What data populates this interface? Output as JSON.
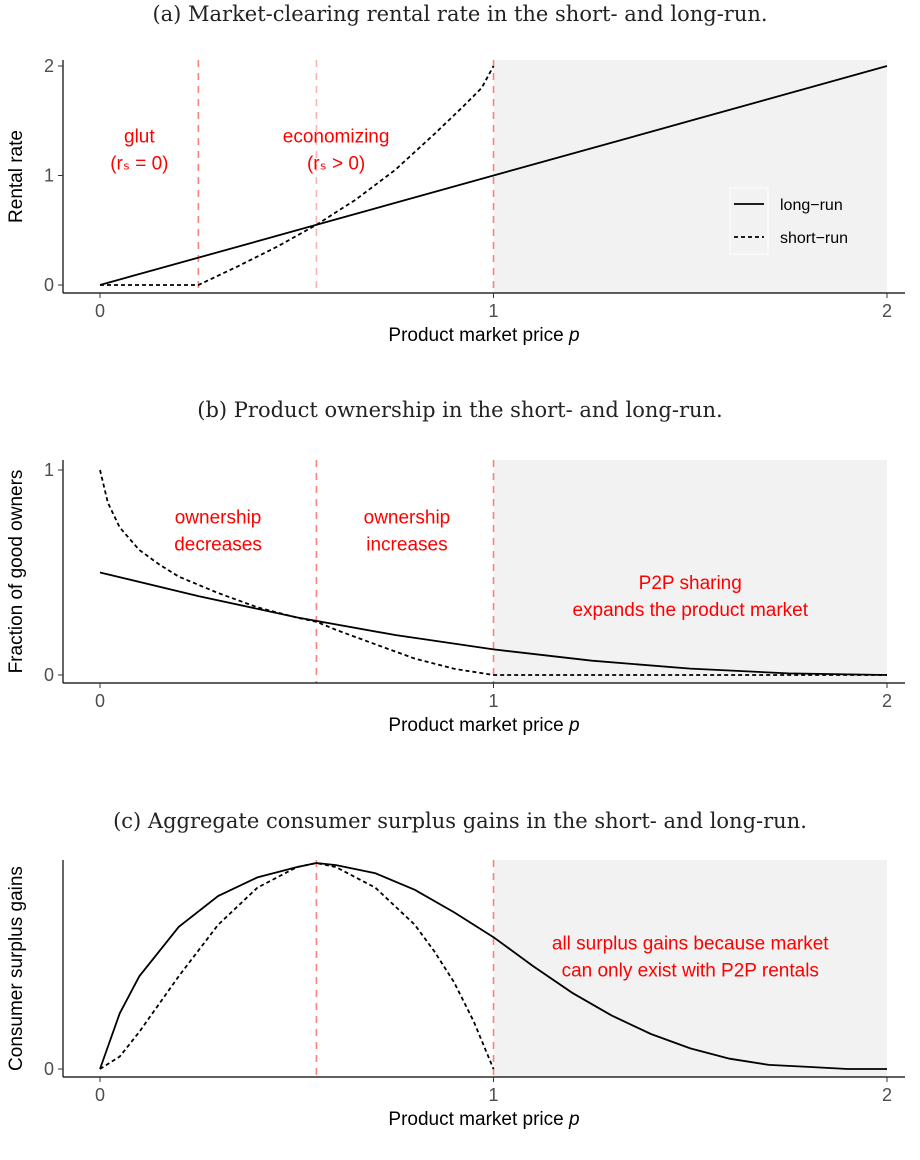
{
  "chart_data": [
    {
      "type": "line",
      "title": "(a) Market-clearing rental rate in the short- and long-run.",
      "xlabel": "Product market price p",
      "xlabel_prefix": "Product market price ",
      "xlabel_var": "p",
      "ylabel": "Rental rate",
      "xlim": [
        0,
        2
      ],
      "ylim": [
        0,
        2
      ],
      "xticks": [
        "0",
        "1",
        "2"
      ],
      "yticks": [
        "0",
        "1",
        "2"
      ],
      "shaded_region": [
        1,
        2
      ],
      "vlines": [
        0.25,
        0.55,
        1
      ],
      "legend": {
        "position": "right",
        "entries": [
          "long−run",
          "short−run"
        ]
      },
      "series": [
        {
          "name": "long−run",
          "style": "solid",
          "x": [
            0,
            0.5,
            1,
            1.5,
            2
          ],
          "y": [
            0,
            0.5,
            1,
            1.5,
            2
          ]
        },
        {
          "name": "short−run",
          "style": "dashed",
          "x": [
            0,
            0.25,
            0.35,
            0.45,
            0.55,
            0.65,
            0.75,
            0.85,
            0.92,
            0.97,
            1
          ],
          "y": [
            0,
            0,
            0.17,
            0.35,
            0.55,
            0.78,
            1.05,
            1.38,
            1.62,
            1.8,
            2
          ]
        }
      ],
      "annotations": [
        {
          "lines": [
            "glut",
            "(rₛ = 0)"
          ],
          "x": 0.1,
          "y": 1.3
        },
        {
          "lines": [
            "economizing",
            "(rₛ > 0)"
          ],
          "x": 0.6,
          "y": 1.3
        }
      ]
    },
    {
      "type": "line",
      "title": "(b) Product ownership in the short- and long-run.",
      "xlabel": "Product market price p",
      "xlabel_prefix": "Product market price ",
      "xlabel_var": "p",
      "ylabel": "Fraction of good owners",
      "xlim": [
        0,
        2
      ],
      "ylim": [
        0,
        1
      ],
      "xticks": [
        "0",
        "1",
        "2"
      ],
      "yticks": [
        "0",
        "1"
      ],
      "shaded_region": [
        1,
        2
      ],
      "vlines": [
        0.55,
        1
      ],
      "series": [
        {
          "name": "long−run",
          "style": "solid",
          "x": [
            0,
            0.25,
            0.5,
            0.75,
            1,
            1.25,
            1.5,
            1.75,
            2
          ],
          "y": [
            0.5,
            0.385,
            0.281,
            0.195,
            0.125,
            0.07,
            0.031,
            0.008,
            0
          ]
        },
        {
          "name": "short−run",
          "style": "dashed",
          "x": [
            0,
            0.02,
            0.05,
            0.1,
            0.15,
            0.2,
            0.3,
            0.4,
            0.5,
            0.55,
            0.6,
            0.7,
            0.8,
            0.9,
            1,
            1.5,
            2
          ],
          "y": [
            1,
            0.84,
            0.72,
            0.61,
            0.54,
            0.48,
            0.4,
            0.33,
            0.28,
            0.26,
            0.22,
            0.15,
            0.08,
            0.03,
            0,
            0,
            0
          ]
        }
      ],
      "annotations": [
        {
          "lines": [
            "ownership",
            "decreases"
          ],
          "x": 0.3,
          "y": 0.74
        },
        {
          "lines": [
            "ownership",
            "increases"
          ],
          "x": 0.78,
          "y": 0.74
        },
        {
          "lines": [
            "P2P sharing",
            "expands the product market"
          ],
          "x": 1.5,
          "y": 0.42
        }
      ]
    },
    {
      "type": "line",
      "title": "(c) Aggregate consumer surplus gains in the short- and long-run.",
      "xlabel": "Product market price p",
      "xlabel_prefix": "Product market price ",
      "xlabel_var": "p",
      "ylabel": "Consumer surplus gains",
      "xlim": [
        0,
        2
      ],
      "ylim": [
        0,
        1
      ],
      "xticks": [
        "0",
        "1",
        "2"
      ],
      "yticks": [
        "0"
      ],
      "shaded_region": [
        1,
        2
      ],
      "vlines": [
        0.55,
        1
      ],
      "series": [
        {
          "name": "long−run",
          "style": "solid",
          "x": [
            0,
            0.05,
            0.1,
            0.2,
            0.3,
            0.4,
            0.5,
            0.55,
            0.6,
            0.7,
            0.8,
            0.9,
            1,
            1.1,
            1.2,
            1.3,
            1.4,
            1.5,
            1.6,
            1.7,
            1.8,
            1.9,
            2
          ],
          "y": [
            0,
            0.27,
            0.45,
            0.69,
            0.84,
            0.93,
            0.98,
            1,
            0.99,
            0.95,
            0.87,
            0.76,
            0.64,
            0.5,
            0.37,
            0.26,
            0.17,
            0.1,
            0.05,
            0.02,
            0.01,
            0,
            0
          ]
        },
        {
          "name": "short−run",
          "style": "dashed",
          "x": [
            0,
            0.05,
            0.1,
            0.2,
            0.3,
            0.4,
            0.5,
            0.55,
            0.6,
            0.7,
            0.8,
            0.85,
            0.9,
            0.95,
            1
          ],
          "y": [
            0,
            0.06,
            0.18,
            0.45,
            0.7,
            0.88,
            0.98,
            1,
            0.98,
            0.88,
            0.7,
            0.57,
            0.42,
            0.23,
            0
          ]
        }
      ],
      "annotations": [
        {
          "lines": [
            "all surplus gains because market",
            "can only exist with P2P rentals"
          ],
          "x": 1.5,
          "y": 0.58
        }
      ]
    }
  ]
}
